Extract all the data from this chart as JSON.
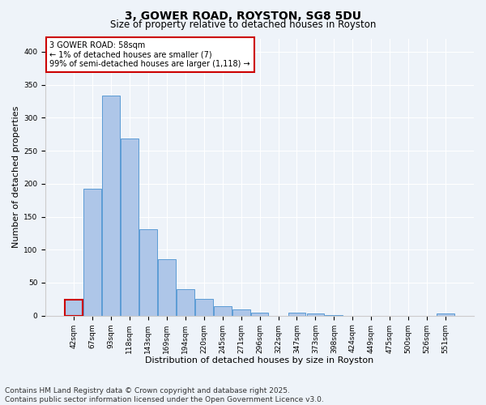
{
  "title": "3, GOWER ROAD, ROYSTON, SG8 5DU",
  "subtitle": "Size of property relative to detached houses in Royston",
  "xlabel": "Distribution of detached houses by size in Royston",
  "ylabel": "Number of detached properties",
  "footer_line1": "Contains HM Land Registry data © Crown copyright and database right 2025.",
  "footer_line2": "Contains public sector information licensed under the Open Government Licence v3.0.",
  "categories": [
    "42sqm",
    "67sqm",
    "93sqm",
    "118sqm",
    "143sqm",
    "169sqm",
    "194sqm",
    "220sqm",
    "245sqm",
    "271sqm",
    "296sqm",
    "322sqm",
    "347sqm",
    "373sqm",
    "398sqm",
    "424sqm",
    "449sqm",
    "475sqm",
    "500sqm",
    "526sqm",
    "551sqm"
  ],
  "values": [
    24,
    192,
    333,
    268,
    131,
    86,
    40,
    26,
    15,
    9,
    4,
    0,
    5,
    3,
    1,
    0,
    0,
    0,
    0,
    0,
    3
  ],
  "bar_color": "#aec6e8",
  "bar_edge_color": "#5b9bd5",
  "highlight_edge_color": "#cc0000",
  "annotation_text": "3 GOWER ROAD: 58sqm\n← 1% of detached houses are smaller (7)\n99% of semi-detached houses are larger (1,118) →",
  "annotation_box_color": "#ffffff",
  "annotation_box_edge_color": "#cc0000",
  "ylim": [
    0,
    420
  ],
  "yticks": [
    0,
    50,
    100,
    150,
    200,
    250,
    300,
    350,
    400
  ],
  "bg_color": "#eef3f9",
  "plot_bg_color": "#eef3f9",
  "grid_color": "#ffffff",
  "title_fontsize": 10,
  "subtitle_fontsize": 8.5,
  "tick_fontsize": 6.5,
  "footer_fontsize": 6.5
}
